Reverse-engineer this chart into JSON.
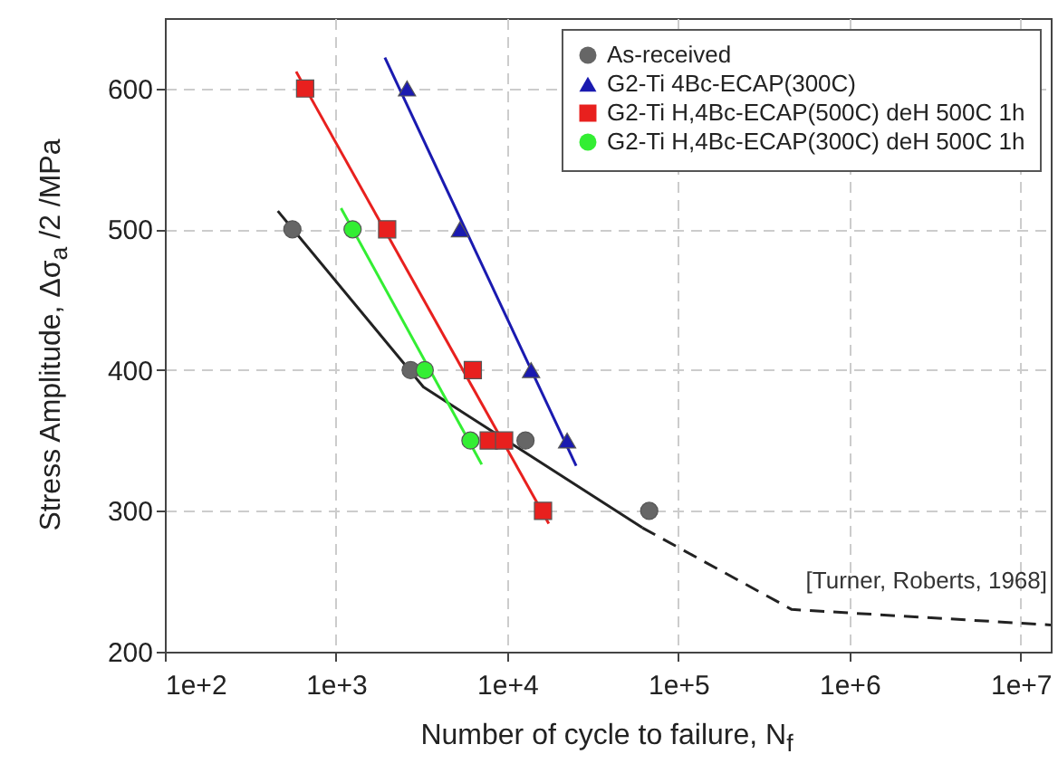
{
  "chart_data": {
    "type": "scatter",
    "xlabel": "Number of cycle to failure, N$_{f}$",
    "ylabel": "Stress Amplitude, Δσ$_{a}$ /2 /MPa",
    "xlim": [
      100,
      15000000
    ],
    "ylim": [
      200,
      650
    ],
    "xticks": [
      {
        "value": 100,
        "label": "1e+2"
      },
      {
        "value": 1000,
        "label": "1e+3"
      },
      {
        "value": 10000,
        "label": "1e+4"
      },
      {
        "value": 100000,
        "label": "1e+5"
      },
      {
        "value": 1000000,
        "label": "1e+6"
      },
      {
        "value": 10000000,
        "label": "1e+7"
      }
    ],
    "yticks": [
      200,
      300,
      400,
      500,
      600
    ],
    "log": "x",
    "grid": true,
    "legend": "top right",
    "annotations": [
      "[Turner, Roberts, 1968]"
    ],
    "series": [
      {
        "name": "As-received",
        "marker": "circle",
        "color": "#666666",
        "x": [
          556,
          2730,
          12800,
          67600
        ],
        "values": [
          500,
          400,
          350,
          300
        ]
      },
      {
        "name": "G2-Ti 4Bc-ECAP(300C)",
        "marker": "triangle",
        "color": "#1a1ab0",
        "x": [
          2600,
          5300,
          13800,
          22400
        ],
        "values": [
          600,
          500,
          400,
          350
        ]
      },
      {
        "name": "G2-Ti H,4Bc-ECAP(500C) deH 500C 1h",
        "marker": "square",
        "color": "#e8201e",
        "x": [
          660,
          1990,
          6300,
          7800,
          9600,
          16200
        ],
        "values": [
          600,
          500,
          400,
          350,
          350,
          300
        ]
      },
      {
        "name": "G2-Ti H,4Bc-ECAP(300C) deH 500C 1h",
        "marker": "circle",
        "color": "#33ee33",
        "x": [
          1250,
          3300,
          6100
        ],
        "values": [
          500,
          400,
          350
        ]
      },
      {
        "type": "line",
        "color": "#222222",
        "line_style": "solid",
        "x": [
          457,
          3240,
          61700
        ],
        "values": [
          513,
          388,
          288
        ]
      },
      {
        "type": "line",
        "color": "#222222",
        "line_style": "dashed",
        "x": [
          61700,
          460000,
          15000000
        ],
        "values": [
          288,
          230,
          219
        ]
      },
      {
        "type": "line",
        "color": "#1a1ab0",
        "line_style": "solid",
        "x": [
          1930,
          25300
        ],
        "values": [
          622,
          332
        ]
      },
      {
        "type": "line",
        "color": "#e8201e",
        "line_style": "solid",
        "x": [
          585,
          17500
        ],
        "values": [
          612,
          291
        ]
      },
      {
        "type": "line",
        "color": "#33ee33",
        "line_style": "solid",
        "x": [
          1070,
          7100
        ],
        "values": [
          515,
          333
        ]
      }
    ]
  }
}
